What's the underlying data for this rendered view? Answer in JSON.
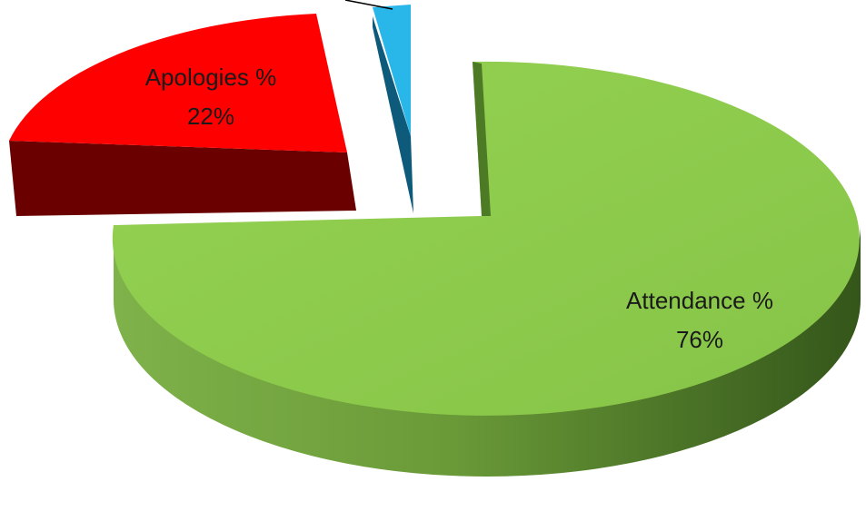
{
  "chart_data": {
    "type": "pie",
    "title": "",
    "slices": [
      {
        "label": "Attendance %",
        "value": 76,
        "value_label": "76%",
        "color": "#92d050",
        "side_color": "#5a8a2a"
      },
      {
        "label": "Apologies %",
        "value": 22,
        "value_label": "22%",
        "color": "#ff0000",
        "side_color": "#6b0000"
      },
      {
        "label": "",
        "value": 2,
        "value_label": "",
        "color": "#29b6e8",
        "side_color": "#0e5a7a"
      }
    ],
    "style": "3d-exploded",
    "legend": "none"
  }
}
